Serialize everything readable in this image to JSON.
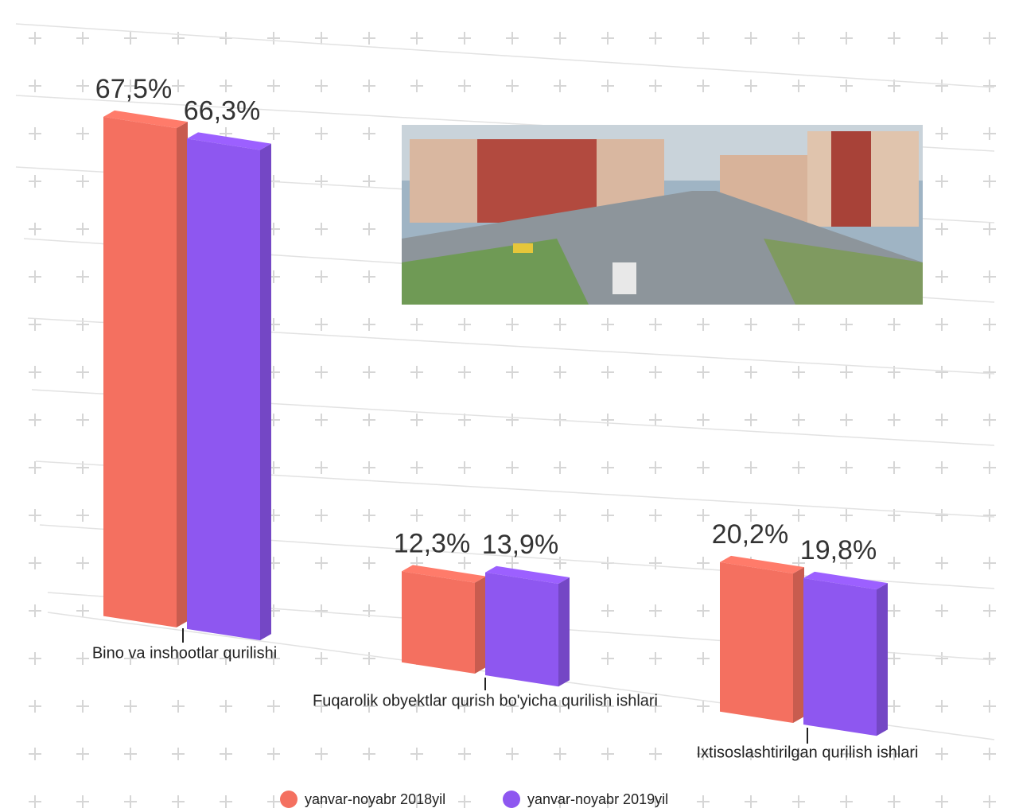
{
  "chart_data": {
    "type": "bar3d",
    "categories": [
      "Bino va inshootlar qurilishi",
      "Fuqarolik obyektlar qurish bo'yicha qurilish ishlari",
      "Ixtisoslashtirilgan qurilish ishlari"
    ],
    "series": [
      {
        "name": "yanvar-noyabr 2018yil",
        "color": "#f47060",
        "values": [
          67.5,
          12.3,
          20.2
        ],
        "value_labels": [
          "67,5%",
          "12,3%",
          "20,2%"
        ]
      },
      {
        "name": "yanvar-noyabr 2019yil",
        "color": "#8e57f0",
        "values": [
          66.3,
          13.9,
          19.8
        ],
        "value_labels": [
          "66,3%",
          "13,9%",
          "19,8%"
        ]
      }
    ]
  }
}
